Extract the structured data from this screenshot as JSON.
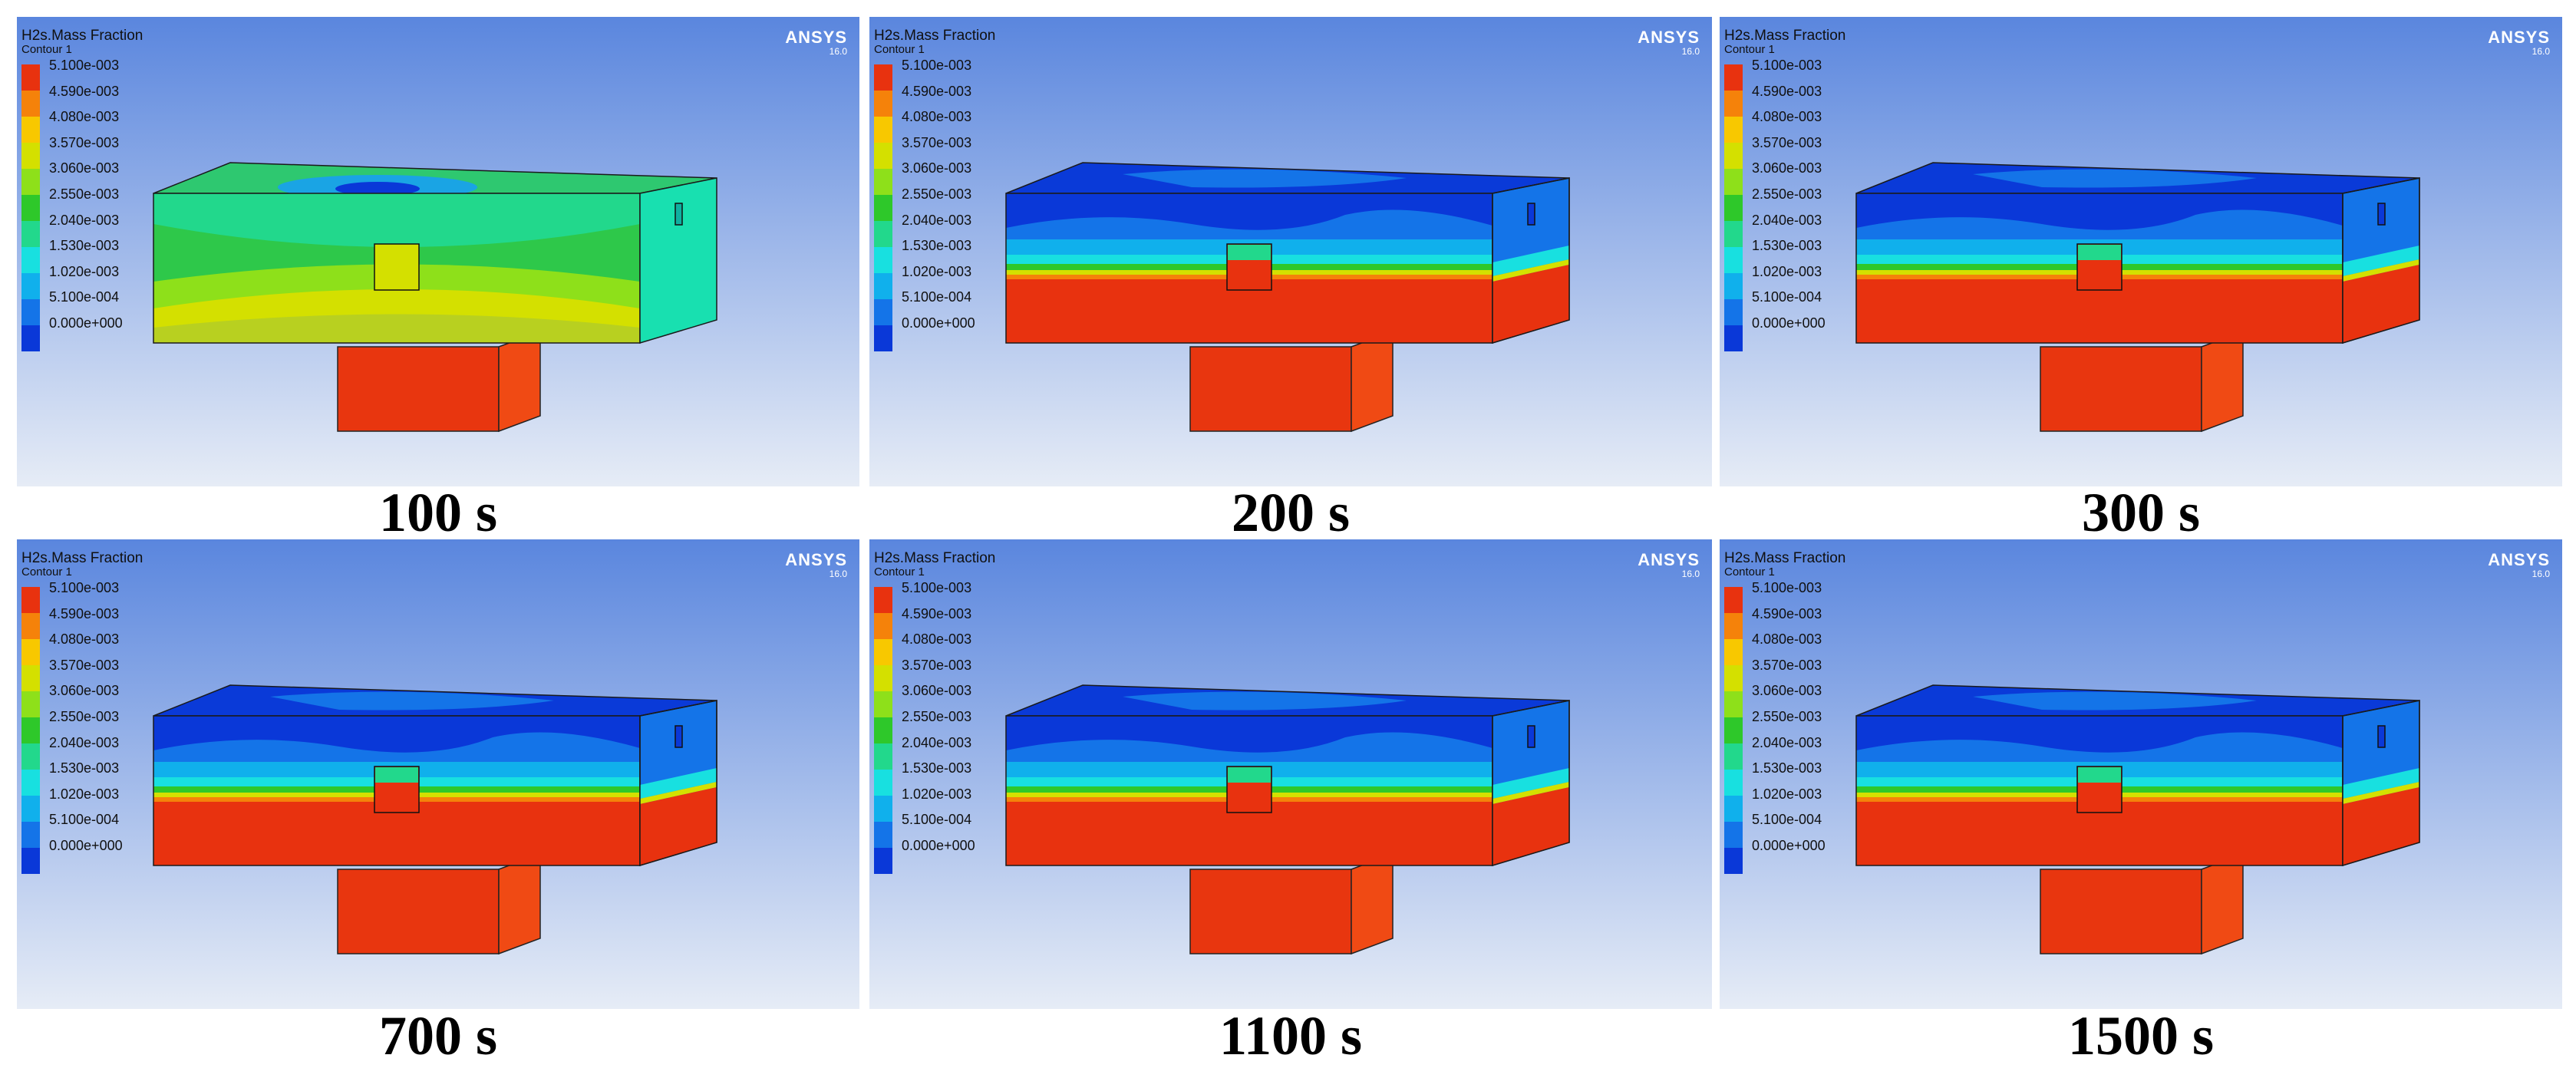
{
  "legend": {
    "title": "H2s.Mass Fraction",
    "subtitle": "Contour 1",
    "levels": [
      "5.100e-003",
      "4.590e-003",
      "4.080e-003",
      "3.570e-003",
      "3.060e-003",
      "2.550e-003",
      "2.040e-003",
      "1.530e-003",
      "1.020e-003",
      "5.100e-004",
      "0.000e+000"
    ],
    "colors": [
      "#e8320f",
      "#f5820a",
      "#f8c800",
      "#d4e000",
      "#8ee01a",
      "#2ec82a",
      "#22d88c",
      "#18e0e0",
      "#10b0ec",
      "#1474e8",
      "#0a38d8"
    ]
  },
  "brand": {
    "name": "ANSYS",
    "version": "16.0"
  },
  "colors": {
    "inlet": "#e8360f",
    "inlet_side": "#f04a14",
    "frame_top": "#5a86de",
    "frame_bottom": "#e6ecf6"
  },
  "panels": [
    {
      "caption": "100 s",
      "state": "early"
    },
    {
      "caption": "200 s",
      "state": "stratified"
    },
    {
      "caption": "300 s",
      "state": "stratified"
    },
    {
      "caption": "700 s",
      "state": "stratified"
    },
    {
      "caption": "1100 s",
      "state": "stratified"
    },
    {
      "caption": "1500 s",
      "state": "stratified"
    }
  ]
}
